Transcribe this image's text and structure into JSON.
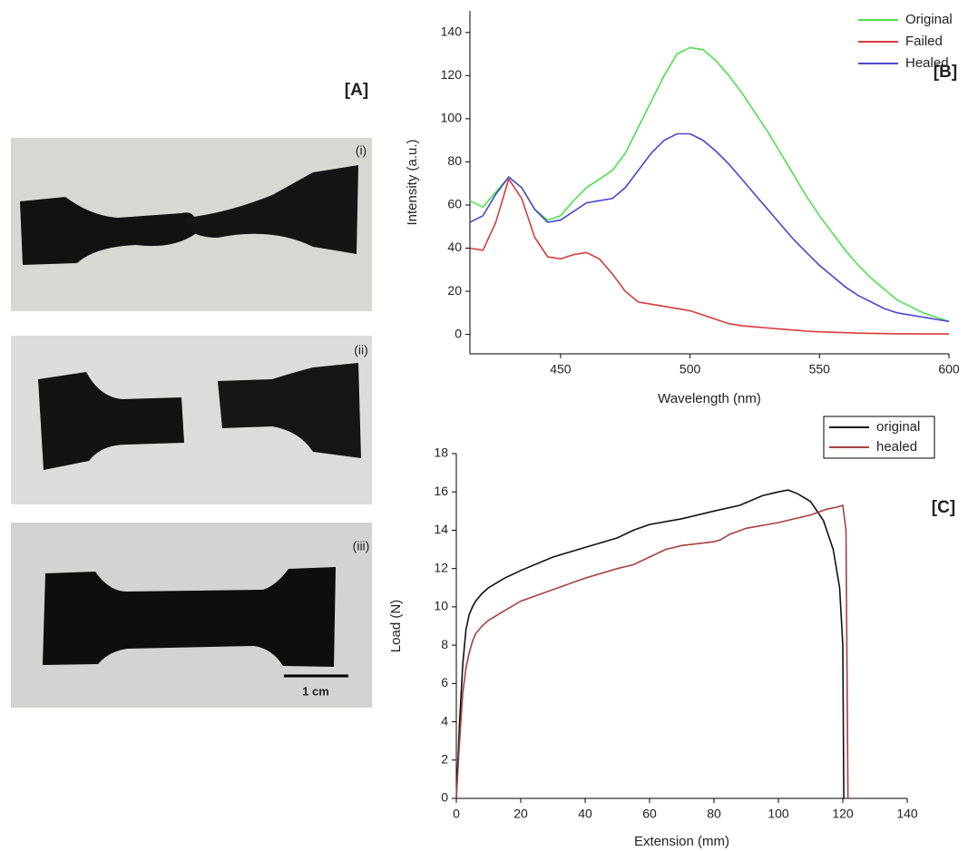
{
  "photo_panel": {
    "label": "[A]",
    "captions": [
      "(i)",
      "(ii)",
      "(iii)"
    ],
    "scale_bar": "1 cm"
  },
  "chart_data": [
    {
      "type": "line",
      "label": "[B]",
      "xlabel": "Wavelength (nm)",
      "ylabel": "Intensity (a.u.)",
      "x": [
        415,
        420,
        425,
        430,
        435,
        440,
        445,
        450,
        455,
        460,
        465,
        470,
        475,
        480,
        485,
        490,
        495,
        500,
        505,
        510,
        515,
        520,
        525,
        530,
        535,
        540,
        545,
        550,
        555,
        560,
        565,
        570,
        575,
        580,
        585,
        590,
        595,
        600
      ],
      "series": [
        {
          "name": "Original",
          "color": "#4ee04e",
          "values": [
            62,
            59,
            66,
            73,
            68,
            58,
            53,
            55,
            62,
            68,
            72,
            76,
            84,
            96,
            108,
            120,
            130,
            133,
            132,
            127,
            120,
            112,
            103,
            94,
            84,
            74,
            64,
            55,
            47,
            39,
            32,
            26,
            21,
            16,
            13,
            10,
            8,
            6
          ]
        },
        {
          "name": "Failed",
          "color": "#d93a3a",
          "values": [
            40,
            39,
            52,
            72,
            63,
            45,
            36,
            35,
            37,
            38,
            35,
            28,
            20,
            15,
            14,
            13,
            12,
            11,
            9,
            7,
            5,
            4,
            3.5,
            3,
            2.5,
            2,
            1.5,
            1.2,
            1,
            0.8,
            0.6,
            0.5,
            0.4,
            0.3,
            0.3,
            0.2,
            0.2,
            0.2
          ]
        },
        {
          "name": "Healed",
          "color": "#4848d0",
          "values": [
            52,
            55,
            65,
            73,
            68,
            58,
            52,
            53,
            57,
            61,
            62,
            63,
            68,
            76,
            84,
            90,
            93,
            93,
            90,
            85,
            79,
            72,
            65,
            58,
            51,
            44,
            38,
            32,
            27,
            22,
            18,
            15,
            12,
            10,
            9,
            8,
            7,
            6
          ]
        }
      ],
      "xlim": [
        415,
        600
      ],
      "ylim": [
        -9,
        150
      ],
      "xticks": [
        450,
        500,
        550,
        600
      ],
      "yticks": [
        0,
        20,
        40,
        60,
        80,
        100,
        120,
        140
      ],
      "legend": "upper right",
      "legend_frame": false
    },
    {
      "type": "line",
      "label": "[C]",
      "xlabel": "Extension (mm)",
      "ylabel": "Load (N)",
      "series": [
        {
          "name": "original",
          "color": "#111111",
          "x": [
            0,
            1,
            2,
            3,
            4,
            5,
            6,
            8,
            10,
            15,
            20,
            30,
            40,
            50,
            55,
            60,
            70,
            80,
            88,
            95,
            100,
            103,
            106,
            110,
            114,
            117,
            119,
            120,
            120.3
          ],
          "values": [
            0,
            4,
            7,
            8.8,
            9.6,
            10,
            10.3,
            10.7,
            11,
            11.5,
            11.9,
            12.6,
            13.1,
            13.6,
            14,
            14.3,
            14.6,
            15,
            15.3,
            15.8,
            16,
            16.1,
            15.9,
            15.5,
            14.5,
            13,
            11,
            8,
            0
          ]
        },
        {
          "name": "healed",
          "color": "#a5423e",
          "x": [
            0,
            1,
            2,
            3,
            4,
            5,
            6,
            8,
            10,
            15,
            20,
            30,
            40,
            50,
            55,
            60,
            65,
            70,
            80,
            82,
            85,
            90,
            100,
            110,
            115,
            118,
            120,
            121,
            121.3,
            121.6
          ],
          "values": [
            0,
            3,
            5.5,
            6.8,
            7.6,
            8.2,
            8.6,
            9,
            9.3,
            9.8,
            10.3,
            10.9,
            11.5,
            12.0,
            12.2,
            12.6,
            13,
            13.2,
            13.4,
            13.5,
            13.8,
            14.1,
            14.4,
            14.8,
            15.1,
            15.2,
            15.3,
            14,
            7,
            0
          ]
        }
      ],
      "xlim": [
        0,
        140
      ],
      "ylim": [
        0,
        18
      ],
      "xticks": [
        0,
        20,
        40,
        60,
        80,
        100,
        120,
        140
      ],
      "yticks": [
        0,
        2,
        4,
        6,
        8,
        10,
        12,
        14,
        16,
        18
      ],
      "legend": "upper right",
      "legend_frame": true
    }
  ]
}
